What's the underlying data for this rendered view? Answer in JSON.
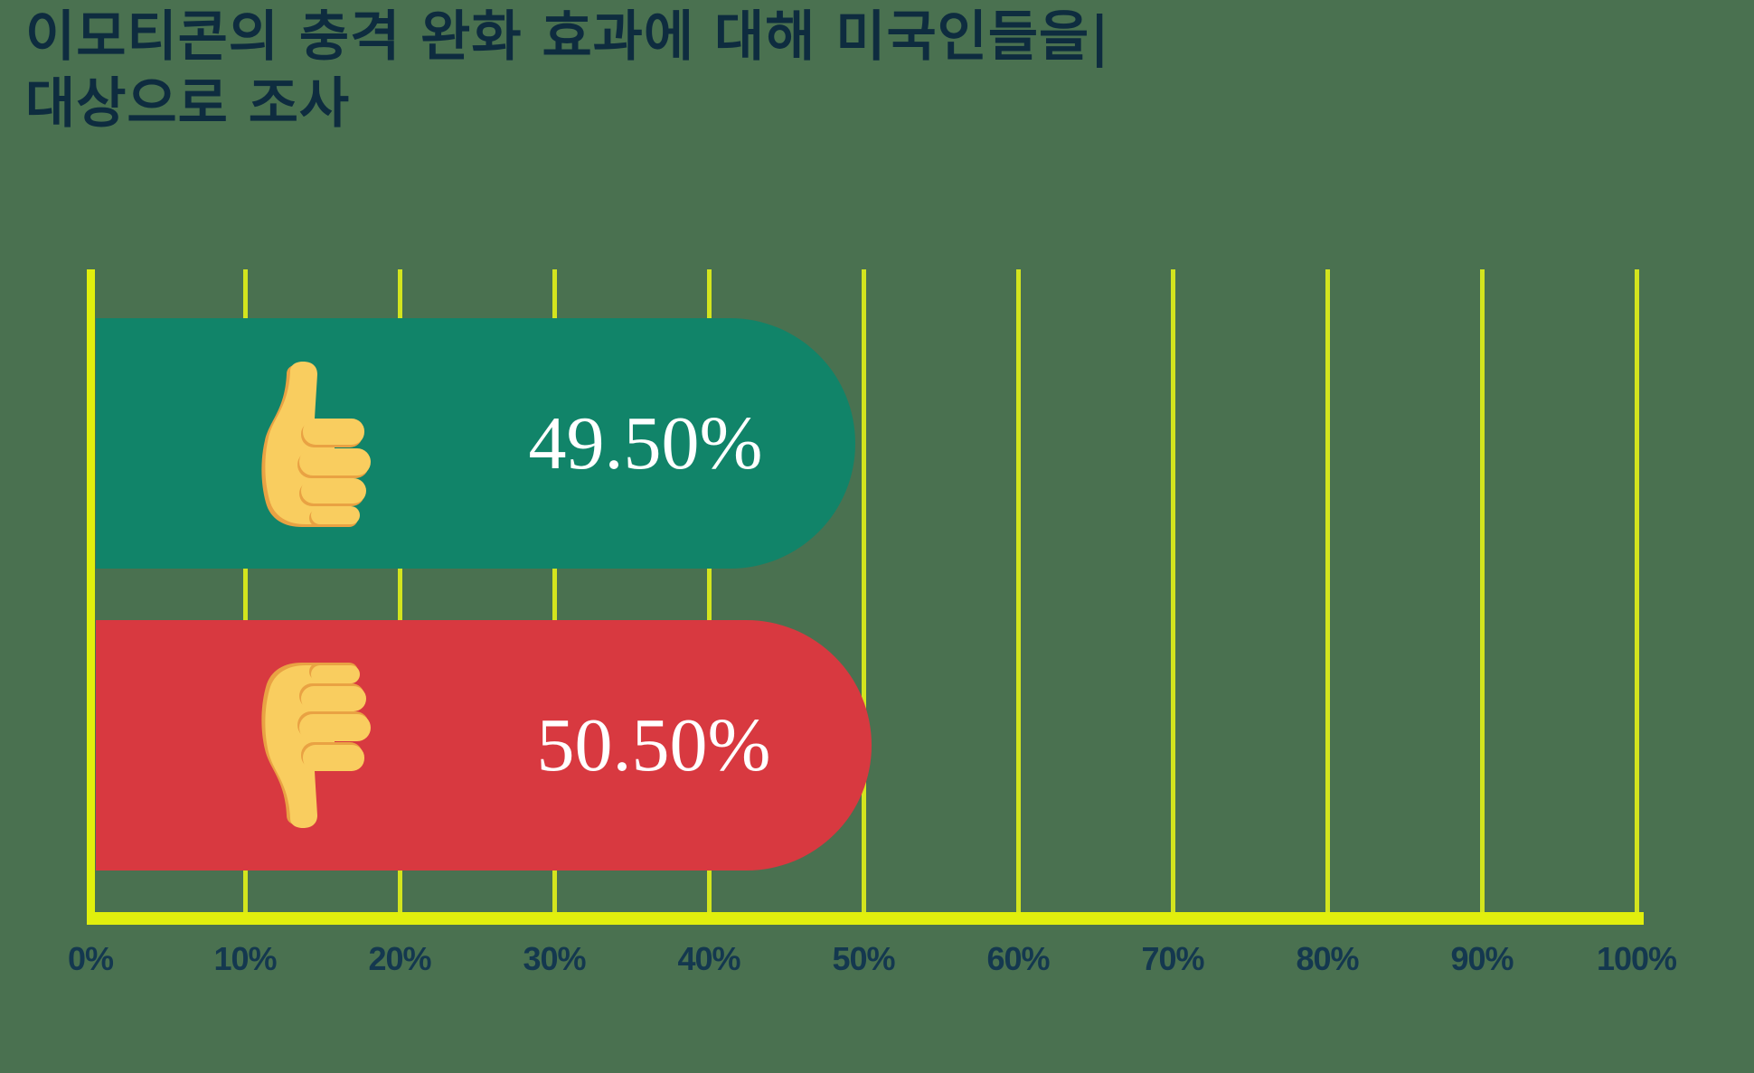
{
  "title": {
    "line1": "이모티콘의 충격 완화 효과에 대해 미국인들을|",
    "line2": "대상으로 조사"
  },
  "chart_data": {
    "type": "bar",
    "orientation": "horizontal",
    "title": "이모티콘의 충격 완화 효과에 대해 미국인들을| 대상으로 조사",
    "categories": [
      "thumbs-up",
      "thumbs-down"
    ],
    "values": [
      49.5,
      50.5
    ],
    "value_labels": [
      "49.50%",
      "50.50%"
    ],
    "series": [
      {
        "name": "thumbs-up",
        "value": 49.5,
        "label": "49.50%",
        "color": "#118469"
      },
      {
        "name": "thumbs-down",
        "value": 50.5,
        "label": "50.50%",
        "color": "#D83940"
      }
    ],
    "xlabel": "",
    "ylabel": "",
    "xlim": [
      0,
      100
    ],
    "grid": true,
    "x_ticks": [
      "0%",
      "10%",
      "20%",
      "30%",
      "40%",
      "50%",
      "60%",
      "70%",
      "80%",
      "90%",
      "100%"
    ]
  },
  "bars": [
    {
      "icon": "thumbs-up-icon",
      "label": "49.50%",
      "value": 49.5,
      "color": "#118469"
    },
    {
      "icon": "thumbs-down-icon",
      "label": "50.50%",
      "value": 50.5,
      "color": "#D83940"
    }
  ],
  "axis": {
    "ticks": [
      "0%",
      "10%",
      "20%",
      "30%",
      "40%",
      "50%",
      "60%",
      "70%",
      "80%",
      "90%",
      "100%"
    ]
  },
  "colors": {
    "background": "#4A7150",
    "bar_positive": "#118469",
    "bar_negative": "#D83940",
    "gridline": "#D3E41E",
    "axis_line": "#E1EF0D",
    "title_text": "#0E2C3F",
    "tick_text": "#14384F",
    "value_text": "#FFFFFF",
    "hand_fill": "#F9CD5F",
    "hand_outline": "#E9A243"
  }
}
